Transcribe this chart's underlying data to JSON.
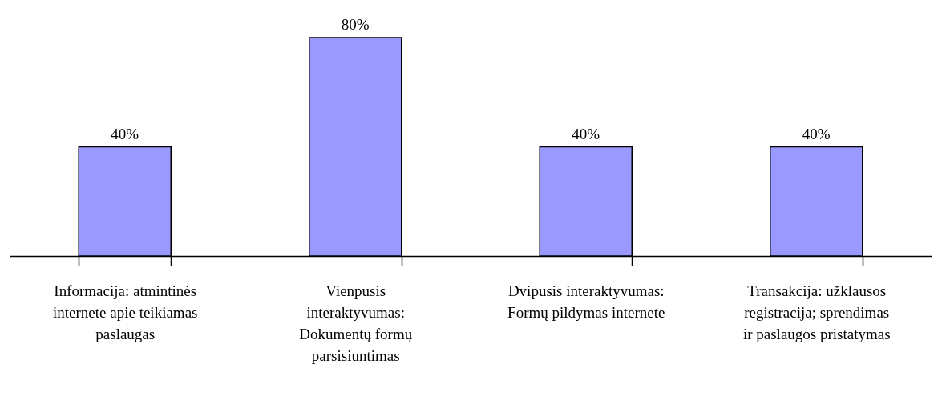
{
  "chart_data": {
    "type": "bar",
    "categories": [
      "Informacija: atmintinės internete apie teikiamas paslaugas",
      "Vienpusis interaktyvumas: Dokumentų formų parsisiuntimas",
      "Dvipusis interaktyvumas: Formų pildymas internete",
      "Transakcija: užklausos registracija; sprendimas ir paslaugos pristatymas"
    ],
    "values": [
      40,
      80,
      40,
      40
    ],
    "value_labels": [
      "40%",
      "80%",
      "40%",
      "40%"
    ],
    "color": "#9999ff",
    "grid": false
  }
}
